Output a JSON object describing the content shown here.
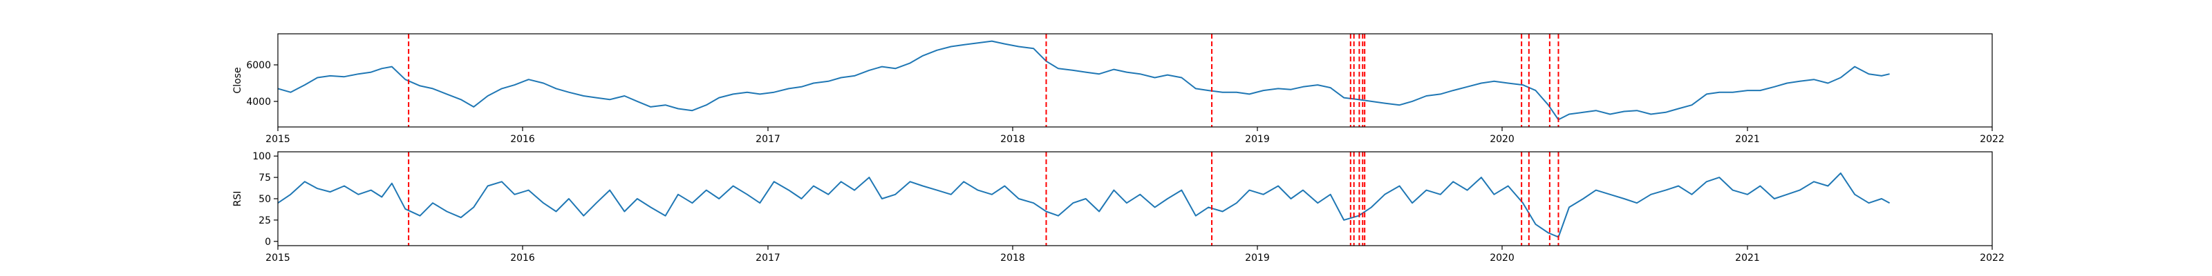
{
  "chart_data": [
    {
      "type": "line",
      "ylabel": "Close",
      "xlim": [
        "2015-01-01",
        "2022-01-01"
      ],
      "ylim": [
        2600,
        7700
      ],
      "x_ticks": [
        "2015",
        "2016",
        "2017",
        "2018",
        "2019",
        "2020",
        "2021",
        "2022"
      ],
      "y_ticks": [
        4000,
        6000
      ],
      "grid": false,
      "line_color": "#1f77b4",
      "series": [
        {
          "x": [
            "2015-01-01",
            "2015-01-20",
            "2015-02-10",
            "2015-03-01",
            "2015-03-20",
            "2015-04-10",
            "2015-05-01",
            "2015-05-20",
            "2015-06-05",
            "2015-06-20",
            "2015-07-10",
            "2015-08-01",
            "2015-08-20",
            "2015-09-10",
            "2015-10-01",
            "2015-10-20",
            "2015-11-10",
            "2015-12-01",
            "2015-12-20",
            "2016-01-10",
            "2016-02-01",
            "2016-02-20",
            "2016-03-10",
            "2016-04-01",
            "2016-04-20",
            "2016-05-10",
            "2016-06-01",
            "2016-06-20",
            "2016-07-10",
            "2016-08-01",
            "2016-08-20",
            "2016-09-10",
            "2016-10-01",
            "2016-10-20",
            "2016-11-10",
            "2016-12-01",
            "2016-12-20",
            "2017-01-10",
            "2017-02-01",
            "2017-02-20",
            "2017-03-10",
            "2017-04-01",
            "2017-04-20",
            "2017-05-10",
            "2017-06-01",
            "2017-06-20",
            "2017-07-10",
            "2017-08-01",
            "2017-08-20",
            "2017-09-10",
            "2017-10-01",
            "2017-10-20",
            "2017-11-10",
            "2017-12-01",
            "2017-12-20",
            "2018-01-10",
            "2018-02-01",
            "2018-02-20",
            "2018-03-10",
            "2018-04-01",
            "2018-04-20",
            "2018-05-10",
            "2018-06-01",
            "2018-06-20",
            "2018-07-10",
            "2018-08-01",
            "2018-08-20",
            "2018-09-10",
            "2018-10-01",
            "2018-10-20",
            "2018-11-10",
            "2018-12-01",
            "2018-12-20",
            "2019-01-10",
            "2019-02-01",
            "2019-02-20",
            "2019-03-10",
            "2019-04-01",
            "2019-04-20",
            "2019-05-10",
            "2019-06-01",
            "2019-06-20",
            "2019-07-10",
            "2019-08-01",
            "2019-08-20",
            "2019-09-10",
            "2019-10-01",
            "2019-10-20",
            "2019-11-10",
            "2019-12-01",
            "2019-12-20",
            "2020-01-10",
            "2020-02-01",
            "2020-02-20",
            "2020-03-10",
            "2020-03-25",
            "2020-04-10",
            "2020-05-01",
            "2020-05-20",
            "2020-06-10",
            "2020-07-01",
            "2020-07-20",
            "2020-08-10",
            "2020-09-01",
            "2020-09-20",
            "2020-10-10",
            "2020-11-01",
            "2020-11-20",
            "2020-12-10",
            "2021-01-01",
            "2021-01-20",
            "2021-02-10",
            "2021-03-01",
            "2021-03-20",
            "2021-04-10",
            "2021-05-01",
            "2021-05-20",
            "2021-06-10",
            "2021-07-01",
            "2021-07-20",
            "2021-08-01"
          ],
          "y": [
            4700,
            4500,
            4900,
            5300,
            5400,
            5350,
            5500,
            5600,
            5800,
            5900,
            5200,
            4850,
            4700,
            4400,
            4100,
            3700,
            4300,
            4700,
            4900,
            5200,
            5000,
            4700,
            4500,
            4300,
            4200,
            4100,
            4300,
            4000,
            3700,
            3800,
            3600,
            3500,
            3800,
            4200,
            4400,
            4500,
            4400,
            4500,
            4700,
            4800,
            5000,
            5100,
            5300,
            5400,
            5700,
            5900,
            5800,
            6100,
            6500,
            6800,
            7000,
            7100,
            7200,
            7300,
            7150,
            7000,
            6900,
            6200,
            5800,
            5700,
            5600,
            5500,
            5750,
            5600,
            5500,
            5300,
            5450,
            5300,
            4700,
            4600,
            4500,
            4500,
            4400,
            4600,
            4700,
            4650,
            4800,
            4900,
            4750,
            4200,
            4100,
            4000,
            3900,
            3800,
            4000,
            4300,
            4400,
            4600,
            4800,
            5000,
            5100,
            5000,
            4900,
            4600,
            3800,
            3000,
            3300,
            3400,
            3500,
            3300,
            3450,
            3500,
            3300,
            3400,
            3600,
            3800,
            4400,
            4500,
            4500,
            4600,
            4600,
            4800,
            5000,
            5100,
            5200,
            5000,
            5300,
            5900,
            5500,
            5400,
            5500
          ]
        }
      ],
      "vlines": [
        "2015-07-15",
        "2018-02-20",
        "2018-10-25",
        "2019-05-20",
        "2019-05-25",
        "2019-06-02",
        "2019-06-07",
        "2019-06-10",
        "2020-01-30",
        "2020-02-10",
        "2020-03-12",
        "2020-03-25"
      ],
      "vline_color": "#ff0000"
    },
    {
      "type": "line",
      "ylabel": "RSI",
      "xlim": [
        "2015-01-01",
        "2022-01-01"
      ],
      "ylim": [
        -5,
        105
      ],
      "x_ticks": [
        "2015",
        "2016",
        "2017",
        "2018",
        "2019",
        "2020",
        "2021",
        "2022"
      ],
      "y_ticks": [
        0,
        25,
        50,
        75,
        100
      ],
      "grid": false,
      "line_color": "#1f77b4",
      "series": [
        {
          "x": [
            "2015-01-01",
            "2015-01-20",
            "2015-02-10",
            "2015-03-01",
            "2015-03-20",
            "2015-04-10",
            "2015-05-01",
            "2015-05-20",
            "2015-06-05",
            "2015-06-20",
            "2015-07-10",
            "2015-08-01",
            "2015-08-20",
            "2015-09-10",
            "2015-10-01",
            "2015-10-20",
            "2015-11-10",
            "2015-12-01",
            "2015-12-20",
            "2016-01-10",
            "2016-02-01",
            "2016-02-20",
            "2016-03-10",
            "2016-04-01",
            "2016-04-20",
            "2016-05-10",
            "2016-06-01",
            "2016-06-20",
            "2016-07-10",
            "2016-08-01",
            "2016-08-20",
            "2016-09-10",
            "2016-10-01",
            "2016-10-20",
            "2016-11-10",
            "2016-12-01",
            "2016-12-20",
            "2017-01-10",
            "2017-02-01",
            "2017-02-20",
            "2017-03-10",
            "2017-04-01",
            "2017-04-20",
            "2017-05-10",
            "2017-06-01",
            "2017-06-20",
            "2017-07-10",
            "2017-08-01",
            "2017-08-20",
            "2017-09-10",
            "2017-10-01",
            "2017-10-20",
            "2017-11-10",
            "2017-12-01",
            "2017-12-20",
            "2018-01-10",
            "2018-02-01",
            "2018-02-20",
            "2018-03-10",
            "2018-04-01",
            "2018-04-20",
            "2018-05-10",
            "2018-06-01",
            "2018-06-20",
            "2018-07-10",
            "2018-08-01",
            "2018-08-20",
            "2018-09-10",
            "2018-10-01",
            "2018-10-20",
            "2018-11-10",
            "2018-12-01",
            "2018-12-20",
            "2019-01-10",
            "2019-02-01",
            "2019-02-20",
            "2019-03-10",
            "2019-04-01",
            "2019-04-20",
            "2019-05-10",
            "2019-06-01",
            "2019-06-20",
            "2019-07-10",
            "2019-08-01",
            "2019-08-20",
            "2019-09-10",
            "2019-10-01",
            "2019-10-20",
            "2019-11-10",
            "2019-12-01",
            "2019-12-20",
            "2020-01-10",
            "2020-02-01",
            "2020-02-20",
            "2020-03-10",
            "2020-03-25",
            "2020-04-10",
            "2020-05-01",
            "2020-05-20",
            "2020-06-10",
            "2020-07-01",
            "2020-07-20",
            "2020-08-10",
            "2020-09-01",
            "2020-09-20",
            "2020-10-10",
            "2020-11-01",
            "2020-11-20",
            "2020-12-10",
            "2021-01-01",
            "2021-01-20",
            "2021-02-10",
            "2021-03-01",
            "2021-03-20",
            "2021-04-10",
            "2021-05-01",
            "2021-05-20",
            "2021-06-10",
            "2021-07-01",
            "2021-07-20",
            "2021-08-01"
          ],
          "y": [
            45,
            55,
            70,
            62,
            58,
            65,
            55,
            60,
            52,
            68,
            38,
            30,
            45,
            35,
            28,
            40,
            65,
            70,
            55,
            60,
            45,
            35,
            50,
            30,
            45,
            60,
            35,
            50,
            40,
            30,
            55,
            45,
            60,
            50,
            65,
            55,
            45,
            70,
            60,
            50,
            65,
            55,
            70,
            60,
            75,
            50,
            55,
            70,
            65,
            60,
            55,
            70,
            60,
            55,
            65,
            50,
            45,
            35,
            30,
            45,
            50,
            35,
            60,
            45,
            55,
            40,
            50,
            60,
            30,
            40,
            35,
            45,
            60,
            55,
            65,
            50,
            60,
            45,
            55,
            25,
            30,
            40,
            55,
            65,
            45,
            60,
            55,
            70,
            60,
            75,
            55,
            65,
            45,
            20,
            10,
            5,
            40,
            50,
            60,
            55,
            50,
            45,
            55,
            60,
            65,
            55,
            70,
            75,
            60,
            55,
            65,
            50,
            55,
            60,
            70,
            65,
            80,
            55,
            45,
            50,
            45
          ]
        }
      ],
      "vlines": [
        "2015-07-15",
        "2018-02-20",
        "2018-10-25",
        "2019-05-20",
        "2019-05-25",
        "2019-06-02",
        "2019-06-07",
        "2019-06-10",
        "2020-01-30",
        "2020-02-10",
        "2020-03-12",
        "2020-03-25"
      ],
      "vline_color": "#ff0000"
    }
  ]
}
